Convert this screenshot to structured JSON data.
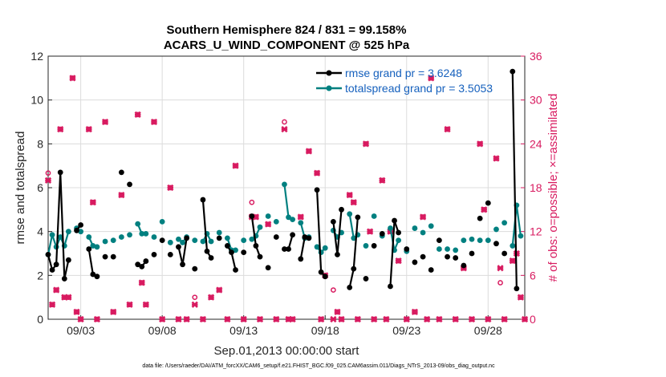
{
  "chart_data": {
    "type": "line",
    "title_line1": "Southern Hemisphere 824 / 831 = 99.158%",
    "title_line2": "ACARS_U_WIND_COMPONENT @ 525 hPa",
    "xlabel": "Sep.01,2013 00:00:00 start",
    "ylabel_left": "rmse and totalspread",
    "ylabel_right": "# of obs: o=possible; ×=assimilated",
    "footer": "data file: /Users/raeder/DAI/ATM_forcXX/CAM6_setup/f.e21.FHIST_BGC.f09_025.CAM6assim.011/Diags_NTrS_2013-09/obs_diag_output.nc",
    "xlim": [
      1.0,
      30.25
    ],
    "ylim_left": [
      0,
      12
    ],
    "ylim_right": [
      0,
      36
    ],
    "x_ticks": [
      3,
      8,
      13,
      18,
      23,
      28
    ],
    "x_tick_labels": [
      "09/03",
      "09/08",
      "09/13",
      "09/18",
      "09/23",
      "09/28"
    ],
    "y_left_ticks": [
      0,
      2,
      4,
      6,
      8,
      10,
      12
    ],
    "y_left_tick_labels": [
      "0",
      "2",
      "4",
      "6",
      "8",
      "10",
      "12"
    ],
    "y_right_ticks": [
      0,
      6,
      12,
      18,
      24,
      30,
      36
    ],
    "y_right_tick_labels": [
      "0",
      "6",
      "12",
      "18",
      "24",
      "30",
      "36"
    ],
    "legend": {
      "rmse_label": "rmse grand pr = 3.6248",
      "spread_label": "totalspread grand pr = 3.5053"
    },
    "colors": {
      "rmse": "#000000",
      "spread": "#008080",
      "obs": "#d81b60",
      "grid": "#dcdcdc"
    },
    "series": [
      {
        "name": "rmse",
        "points": [
          [
            1.0,
            2.95
          ],
          [
            1.25,
            2.25
          ],
          [
            1.5,
            2.5
          ],
          [
            1.75,
            6.7
          ],
          [
            2.0,
            1.85
          ],
          [
            2.25,
            2.7
          ],
          [
            2.75,
            4.05
          ],
          [
            3.0,
            4.3
          ],
          [
            3.5,
            3.2
          ],
          [
            3.75,
            2.05
          ],
          [
            4.0,
            1.95
          ],
          [
            4.5,
            2.85
          ],
          [
            5.0,
            2.85
          ],
          [
            5.5,
            6.7
          ],
          [
            6.0,
            6.15
          ],
          [
            6.5,
            2.5
          ],
          [
            6.75,
            2.4
          ],
          [
            7.0,
            2.65
          ],
          [
            7.5,
            2.95
          ],
          [
            8.0,
            3.6
          ],
          [
            8.5,
            2.95
          ],
          [
            9.0,
            3.3
          ],
          [
            9.25,
            2.5
          ],
          [
            9.5,
            3.7
          ],
          [
            10.0,
            2.3
          ],
          [
            10.5,
            5.45
          ],
          [
            10.75,
            3.1
          ],
          [
            11.0,
            2.8
          ],
          [
            11.5,
            3.7
          ],
          [
            12.0,
            3.35
          ],
          [
            12.25,
            3.05
          ],
          [
            12.5,
            2.25
          ],
          [
            13.0,
            3.05
          ],
          [
            13.5,
            4.7
          ],
          [
            13.75,
            3.35
          ],
          [
            14.0,
            2.85
          ],
          [
            14.5,
            2.35
          ],
          [
            15.0,
            3.75
          ],
          [
            15.5,
            3.2
          ],
          [
            15.75,
            3.2
          ],
          [
            16.0,
            3.85
          ],
          [
            16.5,
            2.75
          ],
          [
            16.75,
            3.75
          ],
          [
            17.0,
            3.7
          ],
          [
            17.5,
            5.9
          ],
          [
            17.75,
            2.15
          ],
          [
            18.0,
            1.95
          ],
          [
            18.5,
            4.45
          ],
          [
            18.75,
            2.95
          ],
          [
            19.0,
            5.0
          ],
          [
            19.5,
            1.45
          ],
          [
            19.75,
            2.3
          ],
          [
            20.0,
            4.65
          ],
          [
            20.5,
            1.85
          ],
          [
            21.0,
            3.35
          ],
          [
            21.5,
            3.9
          ],
          [
            22.0,
            1.5
          ],
          [
            22.25,
            4.5
          ],
          [
            22.5,
            3.95
          ],
          [
            23.0,
            3.2
          ],
          [
            23.5,
            2.6
          ],
          [
            24.0,
            2.85
          ],
          [
            24.5,
            2.25
          ],
          [
            25.0,
            3.6
          ],
          [
            25.5,
            2.85
          ],
          [
            26.0,
            2.8
          ],
          [
            26.5,
            2.45
          ],
          [
            27.0,
            3.0
          ],
          [
            27.5,
            4.6
          ],
          [
            28.0,
            5.3
          ],
          [
            28.5,
            3.45
          ],
          [
            29.0,
            3.0
          ],
          [
            29.5,
            11.3
          ],
          [
            29.75,
            1.4
          ]
        ]
      },
      {
        "name": "totalspread",
        "points": [
          [
            1.0,
            2.95
          ],
          [
            1.25,
            3.85
          ],
          [
            1.5,
            3.3
          ],
          [
            1.75,
            3.75
          ],
          [
            2.0,
            3.35
          ],
          [
            2.25,
            4.0
          ],
          [
            2.75,
            4.15
          ],
          [
            3.0,
            4.0
          ],
          [
            3.5,
            3.75
          ],
          [
            3.75,
            3.35
          ],
          [
            4.0,
            3.3
          ],
          [
            4.5,
            3.55
          ],
          [
            5.0,
            3.6
          ],
          [
            5.5,
            3.75
          ],
          [
            6.0,
            3.85
          ],
          [
            6.5,
            4.35
          ],
          [
            6.75,
            3.9
          ],
          [
            7.0,
            3.9
          ],
          [
            7.5,
            3.75
          ],
          [
            8.0,
            4.45
          ],
          [
            8.5,
            3.5
          ],
          [
            9.0,
            3.65
          ],
          [
            9.25,
            3.5
          ],
          [
            9.5,
            3.75
          ],
          [
            10.0,
            3.6
          ],
          [
            10.5,
            3.55
          ],
          [
            10.75,
            3.9
          ],
          [
            11.0,
            3.55
          ],
          [
            11.5,
            3.95
          ],
          [
            12.0,
            3.7
          ],
          [
            12.25,
            3.15
          ],
          [
            12.5,
            3.15
          ],
          [
            13.0,
            3.6
          ],
          [
            13.5,
            3.65
          ],
          [
            13.75,
            3.8
          ],
          [
            14.0,
            4.2
          ],
          [
            14.5,
            4.7
          ],
          [
            15.0,
            4.45
          ],
          [
            15.5,
            6.15
          ],
          [
            15.75,
            4.65
          ],
          [
            16.0,
            4.55
          ],
          [
            16.5,
            4.4
          ],
          [
            16.75,
            3.7
          ],
          [
            17.0,
            3.75
          ],
          [
            17.5,
            3.3
          ],
          [
            17.75,
            3.05
          ],
          [
            18.0,
            3.25
          ],
          [
            18.5,
            4.05
          ],
          [
            18.75,
            3.75
          ],
          [
            19.0,
            3.95
          ],
          [
            19.5,
            4.8
          ],
          [
            19.75,
            3.7
          ],
          [
            20.0,
            3.85
          ],
          [
            20.5,
            3.35
          ],
          [
            21.0,
            4.7
          ],
          [
            21.5,
            3.8
          ],
          [
            22.0,
            4.15
          ],
          [
            22.25,
            3.15
          ],
          [
            22.5,
            3.6
          ],
          [
            23.0,
            3.1
          ],
          [
            23.5,
            4.15
          ],
          [
            24.0,
            3.95
          ],
          [
            24.5,
            4.25
          ],
          [
            25.0,
            3.2
          ],
          [
            25.5,
            3.2
          ],
          [
            26.0,
            3.15
          ],
          [
            26.5,
            3.6
          ],
          [
            27.0,
            3.65
          ],
          [
            27.5,
            3.6
          ],
          [
            28.0,
            3.6
          ],
          [
            28.5,
            4.1
          ],
          [
            29.0,
            4.4
          ],
          [
            29.5,
            3.35
          ],
          [
            29.75,
            5.2
          ],
          [
            30.0,
            3.8
          ]
        ]
      }
    ],
    "obs_possible": [
      [
        1.0,
        20
      ],
      [
        1.25,
        2
      ],
      [
        1.5,
        4
      ],
      [
        1.75,
        26
      ],
      [
        2.0,
        3
      ],
      [
        2.25,
        3
      ],
      [
        2.5,
        33
      ],
      [
        2.75,
        1
      ],
      [
        3.0,
        0
      ],
      [
        3.5,
        26
      ],
      [
        3.75,
        16
      ],
      [
        4.0,
        0
      ],
      [
        4.5,
        27
      ],
      [
        5.0,
        1
      ],
      [
        5.5,
        17
      ],
      [
        6.0,
        2
      ],
      [
        6.5,
        28
      ],
      [
        6.75,
        5
      ],
      [
        7.0,
        2
      ],
      [
        7.5,
        27
      ],
      [
        8.0,
        0
      ],
      [
        8.5,
        18
      ],
      [
        9.0,
        0
      ],
      [
        9.5,
        0
      ],
      [
        10.0,
        3
      ],
      [
        10.5,
        0
      ],
      [
        11.0,
        3
      ],
      [
        11.5,
        4
      ],
      [
        12.0,
        0
      ],
      [
        12.5,
        21
      ],
      [
        13.0,
        0
      ],
      [
        13.5,
        16
      ],
      [
        13.75,
        14
      ],
      [
        14.0,
        0
      ],
      [
        14.5,
        13
      ],
      [
        15.0,
        0
      ],
      [
        15.5,
        27
      ],
      [
        15.75,
        0
      ],
      [
        16.0,
        0
      ],
      [
        16.5,
        14
      ],
      [
        17.0,
        23
      ],
      [
        17.5,
        20
      ],
      [
        17.75,
        0
      ],
      [
        18.0,
        6
      ],
      [
        18.5,
        4
      ],
      [
        18.75,
        1
      ],
      [
        19.0,
        0
      ],
      [
        19.5,
        17
      ],
      [
        19.75,
        16
      ],
      [
        20.0,
        0
      ],
      [
        20.5,
        24
      ],
      [
        20.75,
        12
      ],
      [
        21.0,
        0
      ],
      [
        21.5,
        19
      ],
      [
        21.75,
        0
      ],
      [
        22.0,
        12
      ],
      [
        22.5,
        8
      ],
      [
        23.0,
        0
      ],
      [
        23.5,
        1
      ],
      [
        24.0,
        14
      ],
      [
        24.25,
        0
      ],
      [
        24.5,
        33
      ],
      [
        25.0,
        0
      ],
      [
        25.5,
        26
      ],
      [
        26.0,
        0
      ],
      [
        26.5,
        7
      ],
      [
        27.0,
        0
      ],
      [
        27.5,
        24
      ],
      [
        27.75,
        15
      ],
      [
        28.0,
        0
      ],
      [
        28.5,
        22
      ],
      [
        28.75,
        5
      ],
      [
        29.0,
        0
      ],
      [
        29.5,
        8
      ],
      [
        29.75,
        9
      ],
      [
        30.0,
        3
      ],
      [
        30.25,
        0
      ]
    ],
    "obs_assimilated": [
      [
        1.0,
        19
      ],
      [
        1.25,
        2
      ],
      [
        1.5,
        4
      ],
      [
        1.75,
        26
      ],
      [
        2.0,
        3
      ],
      [
        2.25,
        3
      ],
      [
        2.5,
        33
      ],
      [
        2.75,
        1
      ],
      [
        3.0,
        0
      ],
      [
        3.5,
        26
      ],
      [
        3.75,
        16
      ],
      [
        4.0,
        0
      ],
      [
        4.5,
        27
      ],
      [
        5.0,
        1
      ],
      [
        5.5,
        17
      ],
      [
        6.0,
        2
      ],
      [
        6.5,
        28
      ],
      [
        6.75,
        5
      ],
      [
        7.0,
        2
      ],
      [
        7.5,
        27
      ],
      [
        8.0,
        0
      ],
      [
        8.5,
        18
      ],
      [
        9.0,
        0
      ],
      [
        9.5,
        0
      ],
      [
        10.0,
        2
      ],
      [
        10.5,
        0
      ],
      [
        11.0,
        3
      ],
      [
        11.5,
        4
      ],
      [
        12.0,
        0
      ],
      [
        12.5,
        21
      ],
      [
        13.0,
        0
      ],
      [
        13.5,
        14
      ],
      [
        13.75,
        14
      ],
      [
        14.0,
        0
      ],
      [
        14.5,
        13
      ],
      [
        15.0,
        0
      ],
      [
        15.5,
        26
      ],
      [
        15.75,
        0
      ],
      [
        16.0,
        0
      ],
      [
        16.5,
        14
      ],
      [
        17.0,
        23
      ],
      [
        17.5,
        20
      ],
      [
        17.75,
        0
      ],
      [
        18.0,
        6
      ],
      [
        18.5,
        0
      ],
      [
        18.75,
        1
      ],
      [
        19.0,
        0
      ],
      [
        19.5,
        17
      ],
      [
        19.75,
        16
      ],
      [
        20.0,
        0
      ],
      [
        20.5,
        24
      ],
      [
        20.75,
        12
      ],
      [
        21.0,
        0
      ],
      [
        21.5,
        19
      ],
      [
        21.75,
        0
      ],
      [
        22.0,
        12
      ],
      [
        22.5,
        8
      ],
      [
        23.0,
        0
      ],
      [
        23.5,
        1
      ],
      [
        24.0,
        14
      ],
      [
        24.25,
        0
      ],
      [
        24.5,
        33
      ],
      [
        25.0,
        0
      ],
      [
        25.5,
        26
      ],
      [
        26.0,
        0
      ],
      [
        26.5,
        7
      ],
      [
        27.0,
        0
      ],
      [
        27.5,
        24
      ],
      [
        27.75,
        15
      ],
      [
        28.0,
        0
      ],
      [
        28.5,
        22
      ],
      [
        28.75,
        7
      ],
      [
        29.0,
        0
      ],
      [
        29.5,
        8
      ],
      [
        29.75,
        9
      ],
      [
        30.0,
        3
      ],
      [
        30.25,
        0
      ]
    ]
  }
}
